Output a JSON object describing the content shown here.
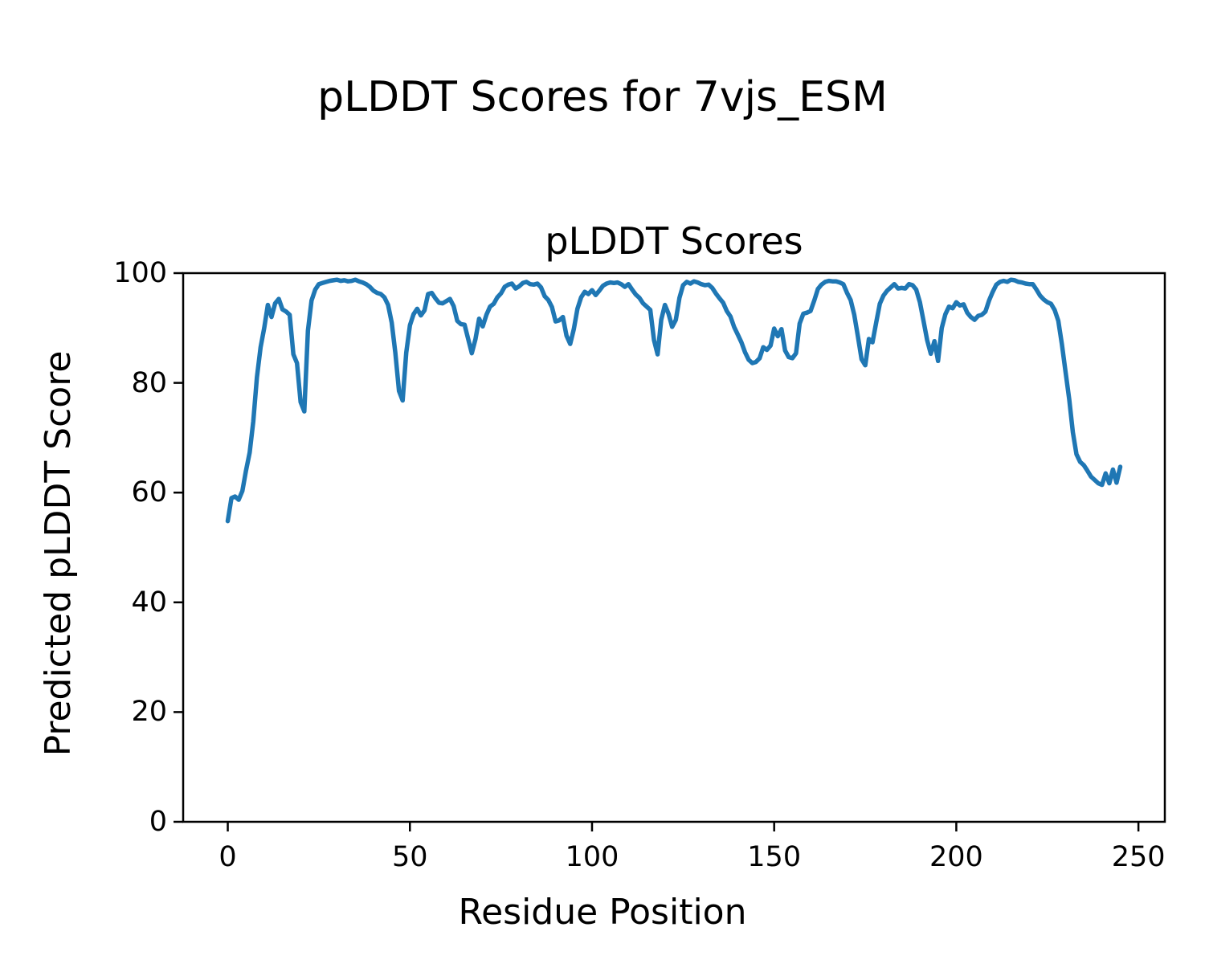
{
  "figure": {
    "suptitle": "pLDDT Scores for 7vjs_ESM"
  },
  "chart_data": {
    "type": "line",
    "title": "pLDDT Scores",
    "xlabel": "Residue Position",
    "ylabel": "Predicted pLDDT Score",
    "xlim": [
      -12.25,
      257.25
    ],
    "ylim": [
      0,
      100
    ],
    "xticks": [
      0,
      50,
      100,
      150,
      200,
      250
    ],
    "yticks": [
      0,
      20,
      40,
      60,
      80,
      100
    ],
    "grid": false,
    "legend": false,
    "background": "#ffffff",
    "text_color": "#000000",
    "spine_color": "#000000",
    "line_color": "#1f77b4",
    "line_width": 5.5,
    "series": [
      {
        "name": "pLDDT",
        "x_start": 0,
        "x_step": 1,
        "values": [
          54.8,
          59.0,
          59.3,
          58.7,
          60.3,
          64.0,
          67.3,
          73.0,
          81.0,
          86.5,
          90.0,
          94.2,
          92.0,
          94.5,
          95.3,
          93.4,
          93.0,
          92.4,
          85.2,
          83.6,
          76.5,
          74.8,
          89.5,
          95.0,
          97.0,
          98.0,
          98.2,
          98.4,
          98.6,
          98.7,
          98.8,
          98.6,
          98.7,
          98.5,
          98.6,
          98.8,
          98.5,
          98.3,
          98.0,
          97.5,
          96.8,
          96.4,
          96.2,
          95.6,
          94.2,
          91.0,
          85.5,
          78.5,
          76.8,
          85.5,
          90.5,
          92.5,
          93.5,
          92.3,
          93.2,
          96.2,
          96.4,
          95.4,
          94.6,
          94.5,
          94.9,
          95.3,
          94.0,
          91.3,
          90.7,
          90.6,
          88.0,
          85.4,
          88.0,
          91.7,
          90.3,
          92.4,
          93.9,
          94.4,
          95.6,
          96.3,
          97.5,
          97.9,
          98.1,
          97.2,
          97.6,
          98.2,
          98.4,
          98.0,
          97.9,
          98.1,
          97.4,
          95.8,
          95.1,
          93.8,
          91.2,
          91.4,
          92.0,
          88.6,
          87.1,
          89.8,
          93.5,
          95.6,
          96.6,
          96.2,
          96.9,
          96.0,
          96.8,
          97.7,
          98.1,
          98.3,
          98.2,
          98.3,
          98.0,
          97.5,
          98.0,
          97.0,
          96.1,
          95.5,
          94.5,
          93.9,
          93.3,
          87.8,
          85.2,
          91.5,
          94.2,
          92.6,
          90.2,
          91.5,
          95.5,
          97.8,
          98.4,
          98.1,
          98.5,
          98.3,
          98.0,
          97.8,
          97.9,
          97.3,
          96.3,
          95.4,
          94.6,
          93.1,
          92.1,
          90.2,
          88.8,
          87.4,
          85.6,
          84.2,
          83.6,
          83.8,
          84.5,
          86.5,
          86.0,
          86.8,
          89.9,
          88.5,
          89.8,
          85.9,
          84.7,
          84.5,
          85.4,
          90.8,
          92.6,
          92.8,
          93.1,
          95.0,
          97.1,
          97.9,
          98.4,
          98.6,
          98.5,
          98.5,
          98.3,
          98.0,
          96.4,
          95.1,
          92.4,
          88.4,
          84.3,
          83.2,
          88.0,
          87.4,
          91.0,
          94.4,
          95.9,
          96.8,
          97.4,
          98.0,
          97.2,
          97.3,
          97.2,
          98.0,
          97.8,
          97.0,
          94.7,
          91.3,
          87.8,
          85.3,
          87.6,
          84.0,
          90.0,
          92.5,
          93.9,
          93.6,
          94.7,
          94.1,
          94.3,
          92.8,
          92.0,
          91.5,
          92.2,
          92.4,
          93.0,
          95.0,
          96.6,
          97.9,
          98.4,
          98.6,
          98.4,
          98.8,
          98.7,
          98.4,
          98.3,
          98.1,
          98.0,
          98.0,
          97.0,
          95.9,
          95.2,
          94.7,
          94.4,
          93.3,
          91.3,
          87.0,
          82.0,
          77.0,
          71.0,
          67.0,
          65.6,
          65.0,
          64.0,
          62.9,
          62.3,
          61.7,
          61.4,
          63.5,
          61.7,
          64.2,
          61.8,
          64.7
        ]
      }
    ]
  }
}
